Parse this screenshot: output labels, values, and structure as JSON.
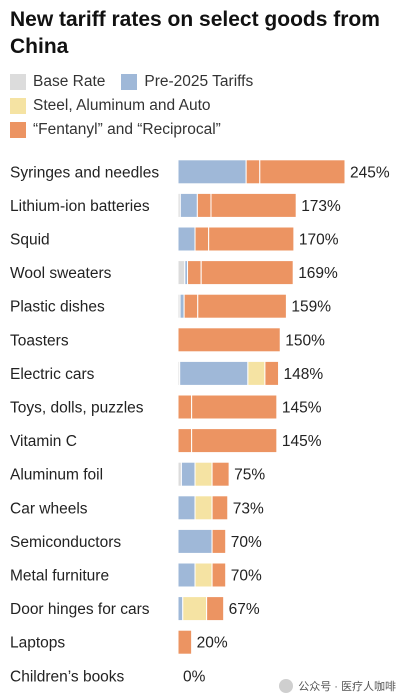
{
  "title": "New tariff rates on select goods from China",
  "legend": [
    {
      "label": "Base Rate",
      "color": "#dcdcdc"
    },
    {
      "label": "Pre-2025 Tariffs",
      "color": "#9fb8d8"
    },
    {
      "label": "Steel, Aluminum and Auto",
      "color": "#f5e3a3"
    },
    {
      "label": "“Fentanyl” and “Reciprocal”",
      "color": "#ec9462"
    }
  ],
  "watermark": "公众号 · 医疗人咖啡",
  "chart_data": {
    "type": "bar",
    "orientation": "horizontal",
    "stacked": true,
    "categories": [
      "Syringes and needles",
      "Lithium-ion batteries",
      "Squid",
      "Wool sweaters",
      "Plastic dishes",
      "Toasters",
      "Electric cars",
      "Toys, dolls, puzzles",
      "Vitamin C",
      "Aluminum foil",
      "Car wheels",
      "Semiconductors",
      "Metal furniture",
      "Door hinges for cars",
      "Laptops",
      "Children’s books"
    ],
    "total_labels": [
      "245%",
      "173%",
      "170%",
      "169%",
      "159%",
      "150%",
      "148%",
      "145%",
      "145%",
      "75%",
      "73%",
      "70%",
      "70%",
      "67%",
      "20%",
      "0%"
    ],
    "series": [
      {
        "name": "Base Rate",
        "values": [
          0,
          3.4,
          0,
          10,
          3,
          0,
          2.5,
          0,
          0,
          5,
          0,
          0,
          0,
          0,
          0,
          0
        ]
      },
      {
        "name": "Pre-2025 Tariffs",
        "values": [
          100,
          25,
          25,
          4,
          6,
          0,
          100,
          0,
          0,
          20,
          25,
          50,
          25,
          7,
          0,
          0
        ]
      },
      {
        "name": "Steel, Aluminum and Auto",
        "values": [
          0,
          0,
          0,
          0,
          0,
          0,
          25,
          0,
          0,
          25,
          25,
          0,
          25,
          35,
          0,
          0
        ]
      },
      {
        "name": "“Fentanyl” and “Reciprocal”",
        "values": [
          145,
          145,
          145,
          155,
          150,
          150,
          20,
          145,
          145,
          25,
          23,
          20,
          20,
          25,
          20,
          0
        ]
      }
    ],
    "segments": [
      [
        100,
        20,
        125
      ],
      [
        3.4,
        25,
        20,
        125
      ],
      [
        25,
        20,
        125
      ],
      [
        10,
        4,
        20,
        135
      ],
      [
        3,
        6,
        20,
        130
      ],
      [
        150
      ],
      [
        2.5,
        100,
        25,
        20
      ],
      [
        20,
        125
      ],
      [
        20,
        125
      ],
      [
        5,
        20,
        25,
        25
      ],
      [
        25,
        25,
        23
      ],
      [
        50,
        20
      ],
      [
        25,
        25,
        20
      ],
      [
        7,
        35,
        25
      ],
      [
        20
      ],
      []
    ],
    "segment_series": [
      [
        1,
        3,
        3
      ],
      [
        0,
        1,
        3,
        3
      ],
      [
        1,
        3,
        3
      ],
      [
        0,
        1,
        3,
        3
      ],
      [
        0,
        1,
        3,
        3
      ],
      [
        3
      ],
      [
        0,
        1,
        2,
        3
      ],
      [
        3,
        3
      ],
      [
        3,
        3
      ],
      [
        0,
        1,
        2,
        3
      ],
      [
        1,
        2,
        3
      ],
      [
        1,
        3
      ],
      [
        1,
        2,
        3
      ],
      [
        1,
        2,
        3
      ],
      [
        3
      ],
      []
    ],
    "xlim": [
      0,
      245
    ],
    "grid": false,
    "legend_position": "top-left"
  }
}
